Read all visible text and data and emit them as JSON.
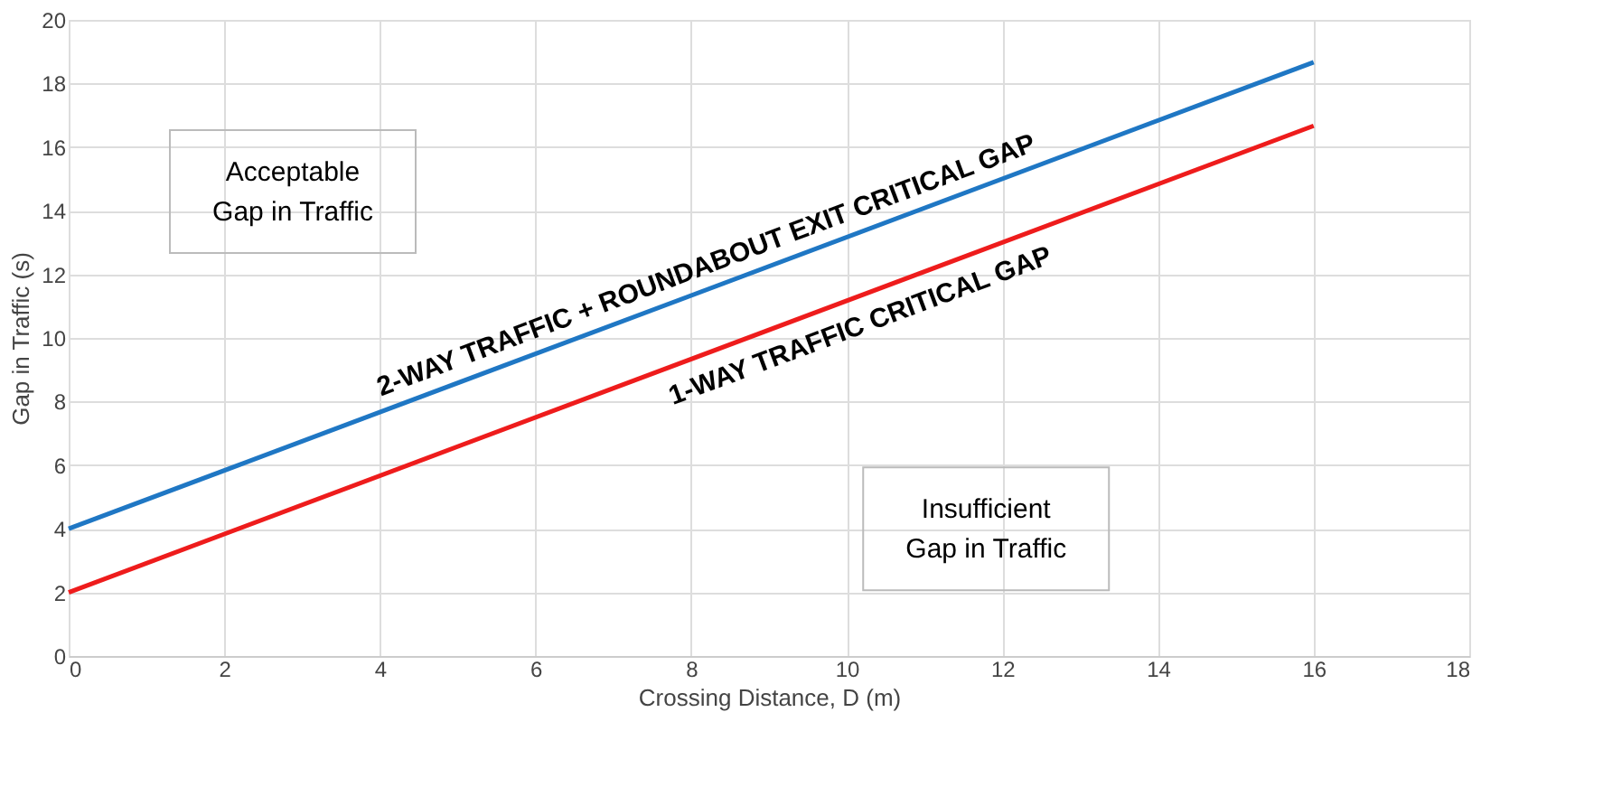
{
  "chart_data": {
    "type": "line",
    "xlabel": "Crossing Distance, D (m)",
    "ylabel": "Gap in Traffic (s)",
    "x": [
      0,
      16
    ],
    "series": [
      {
        "color": "#1f77c4",
        "values": [
          4,
          18.67
        ]
      },
      {
        "color": "#ee1c1c",
        "values": [
          2,
          16.67
        ]
      }
    ],
    "xlim": [
      0,
      18
    ],
    "xticks": [
      0,
      2,
      4,
      6,
      8,
      10,
      12,
      14,
      16,
      18
    ],
    "ylim": [
      0,
      20
    ],
    "yticks": [
      0,
      2,
      4,
      6,
      8,
      10,
      12,
      14,
      16,
      18,
      20
    ],
    "grid": true,
    "marker": "none",
    "line_style": "solid",
    "annotations": [
      "2-WAY TRAFFIC + ROUNDABOUT EXIT CRITICAL GAP",
      "1-WAY TRAFFIC CRITICAL GAP",
      "Acceptable\nGap in Traffic",
      "Insufficient\nGap in Traffic"
    ]
  }
}
